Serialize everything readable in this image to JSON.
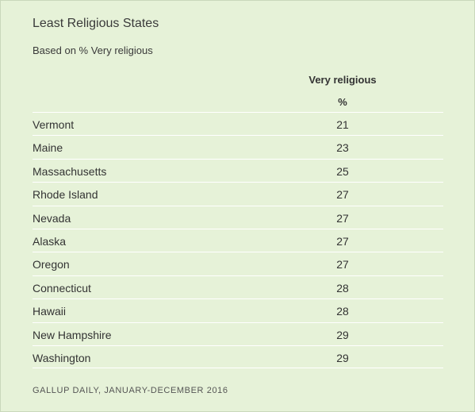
{
  "title": "Least Religious States",
  "subtitle": "Based on % Very religious",
  "column_header": "Very religious",
  "column_unit": "%",
  "source": "GALLUP DAILY, JANUARY-DECEMBER 2016",
  "chart_data": {
    "type": "table",
    "title": "Least Religious States",
    "subtitle": "Based on % Very religious",
    "columns": [
      "Very religious"
    ],
    "unit": "%",
    "categories": [
      "Vermont",
      "Maine",
      "Massachusetts",
      "Rhode Island",
      "Nevada",
      "Alaska",
      "Oregon",
      "Connecticut",
      "Hawaii",
      "New Hampshire",
      "Washington"
    ],
    "values": [
      21,
      23,
      25,
      27,
      27,
      27,
      27,
      28,
      28,
      29,
      29
    ]
  }
}
